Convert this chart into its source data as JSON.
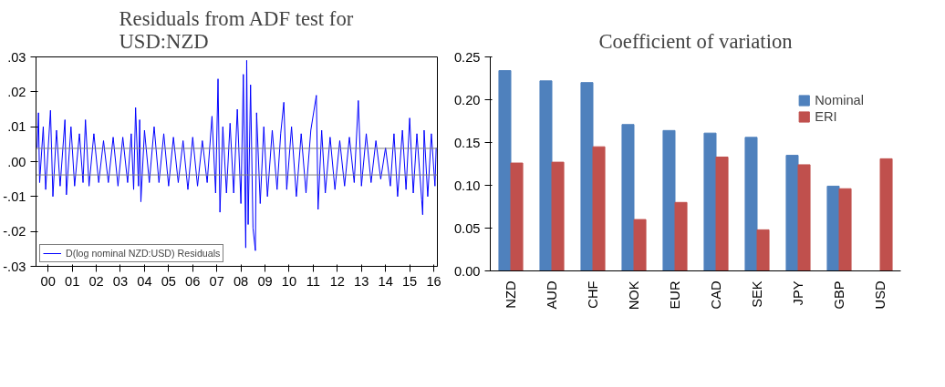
{
  "chart_data": [
    {
      "type": "line",
      "title": "Residuals from ADF test for USD:NZD",
      "x": [
        -0.45,
        -0.4,
        -0.35,
        -0.2,
        -0.1,
        0.1,
        0.2,
        0.35,
        0.5,
        0.7,
        0.76,
        0.95,
        1.1,
        1.3,
        1.45,
        1.55,
        1.7,
        1.9,
        2.1,
        2.3,
        2.5,
        2.7,
        2.9,
        3.1,
        3.3,
        3.45,
        3.55,
        3.63,
        3.75,
        3.8,
        3.85,
        4.0,
        4.2,
        4.4,
        4.6,
        4.8,
        5.0,
        5.2,
        5.4,
        5.6,
        5.8,
        6.0,
        6.2,
        6.4,
        6.6,
        6.8,
        6.95,
        7.05,
        7.13,
        7.25,
        7.4,
        7.55,
        7.7,
        7.85,
        8.0,
        8.1,
        8.2,
        8.24,
        8.3,
        8.4,
        8.5,
        8.6,
        8.65,
        8.8,
        8.95,
        9.1,
        9.3,
        9.5,
        9.65,
        9.78,
        9.9,
        10.1,
        10.3,
        10.5,
        10.7,
        10.9,
        11.13,
        11.2,
        11.35,
        11.5,
        11.7,
        11.9,
        12.1,
        12.3,
        12.5,
        12.7,
        12.87,
        13.0,
        13.2,
        13.4,
        13.6,
        13.8,
        14.0,
        14.2,
        14.35,
        14.5,
        14.7,
        14.85,
        15.0,
        15.15,
        15.3,
        15.5,
        15.54,
        15.6,
        15.75,
        15.9,
        16.05,
        16.1
      ],
      "series": [
        {
          "name": "D(log nominal NZD:USD) Residuals",
          "color": "#0000ff",
          "values": [
            0.004,
            0.014,
            -0.006,
            0.01,
            -0.008,
            0.0147,
            -0.01,
            0.009,
            -0.007,
            0.012,
            -0.0095,
            0.01,
            -0.007,
            0.008,
            -0.006,
            0.012,
            -0.007,
            0.008,
            -0.006,
            0.006,
            -0.006,
            0.007,
            -0.007,
            0.007,
            -0.006,
            0.008,
            -0.008,
            0.0155,
            -0.007,
            0.012,
            -0.0115,
            0.009,
            -0.006,
            0.01,
            -0.006,
            0.008,
            -0.007,
            0.007,
            -0.006,
            0.006,
            -0.008,
            0.007,
            -0.007,
            0.006,
            -0.006,
            0.013,
            -0.009,
            0.0237,
            -0.0145,
            0.01,
            -0.009,
            0.011,
            -0.009,
            0.015,
            -0.012,
            0.025,
            -0.0247,
            0.029,
            -0.018,
            0.022,
            -0.019,
            -0.0255,
            0.014,
            -0.012,
            0.01,
            -0.01,
            0.009,
            -0.008,
            0.008,
            0.017,
            -0.008,
            0.01,
            -0.01,
            0.008,
            -0.009,
            0.009,
            0.019,
            -0.0137,
            0.009,
            -0.009,
            0.007,
            -0.008,
            0.006,
            -0.007,
            0.007,
            -0.006,
            0.0175,
            -0.007,
            0.008,
            -0.006,
            0.006,
            -0.005,
            0.004,
            -0.007,
            0.008,
            -0.01,
            0.009,
            -0.008,
            0.0125,
            -0.009,
            0.008,
            -0.011,
            -0.0152,
            0.009,
            -0.01,
            0.008,
            -0.007,
            0.004
          ]
        }
      ],
      "xlim": [
        -0.5,
        16.15
      ],
      "xticks": [
        {
          "value": 0,
          "label": "00"
        },
        {
          "value": 1,
          "label": "01"
        },
        {
          "value": 2,
          "label": "02"
        },
        {
          "value": 3,
          "label": "03"
        },
        {
          "value": 4,
          "label": "04"
        },
        {
          "value": 5,
          "label": "05"
        },
        {
          "value": 6,
          "label": "06"
        },
        {
          "value": 7,
          "label": "07"
        },
        {
          "value": 8,
          "label": "08"
        },
        {
          "value": 9,
          "label": "09"
        },
        10,
        11,
        12,
        13,
        14,
        15,
        16
      ],
      "ylim": [
        -0.03,
        0.03
      ],
      "yticks": [
        {
          "value": -0.03,
          "label": "-.03"
        },
        {
          "value": -0.02,
          "label": "-.02"
        },
        {
          "value": -0.01,
          "label": "-.01"
        },
        {
          "value": 0,
          "label": ".00"
        },
        {
          "value": 0.01,
          "label": ".01"
        },
        {
          "value": 0.02,
          "label": ".02"
        },
        {
          "value": 0.03,
          "label": ".03"
        }
      ],
      "ref_lines": [
        {
          "axis": "y",
          "value": 0.0038,
          "color": "#808080"
        },
        {
          "axis": "y",
          "value": -0.0038,
          "color": "#808080"
        }
      ],
      "legend": "bottom left",
      "grid": false
    },
    {
      "type": "bar",
      "title": "Coefficient of variation",
      "categories": [
        "NZD",
        "AUD",
        "CHF",
        "NOK",
        "EUR",
        "CAD",
        "SEK",
        "JPY",
        "GBP",
        "USD"
      ],
      "series": [
        {
          "name": "Nominal",
          "color": "#4f81bd",
          "values": [
            0.234,
            0.222,
            0.22,
            0.171,
            0.164,
            0.161,
            0.156,
            0.135,
            0.099,
            null
          ]
        },
        {
          "name": "ERI",
          "color": "#c0504d",
          "values": [
            0.126,
            0.127,
            0.145,
            0.06,
            0.08,
            0.133,
            0.048,
            0.124,
            0.096,
            0.131
          ]
        }
      ],
      "ylim": [
        0,
        0.25
      ],
      "yticks": [
        {
          "value": 0,
          "label": "0.00"
        },
        {
          "value": 0.05,
          "label": "0.05"
        },
        {
          "value": 0.1,
          "label": "0.10"
        },
        {
          "value": 0.15,
          "label": "0.15"
        },
        {
          "value": 0.2,
          "label": "0.20"
        },
        {
          "value": 0.25,
          "label": "0.25"
        }
      ],
      "legend": "top right",
      "grid": false
    }
  ]
}
